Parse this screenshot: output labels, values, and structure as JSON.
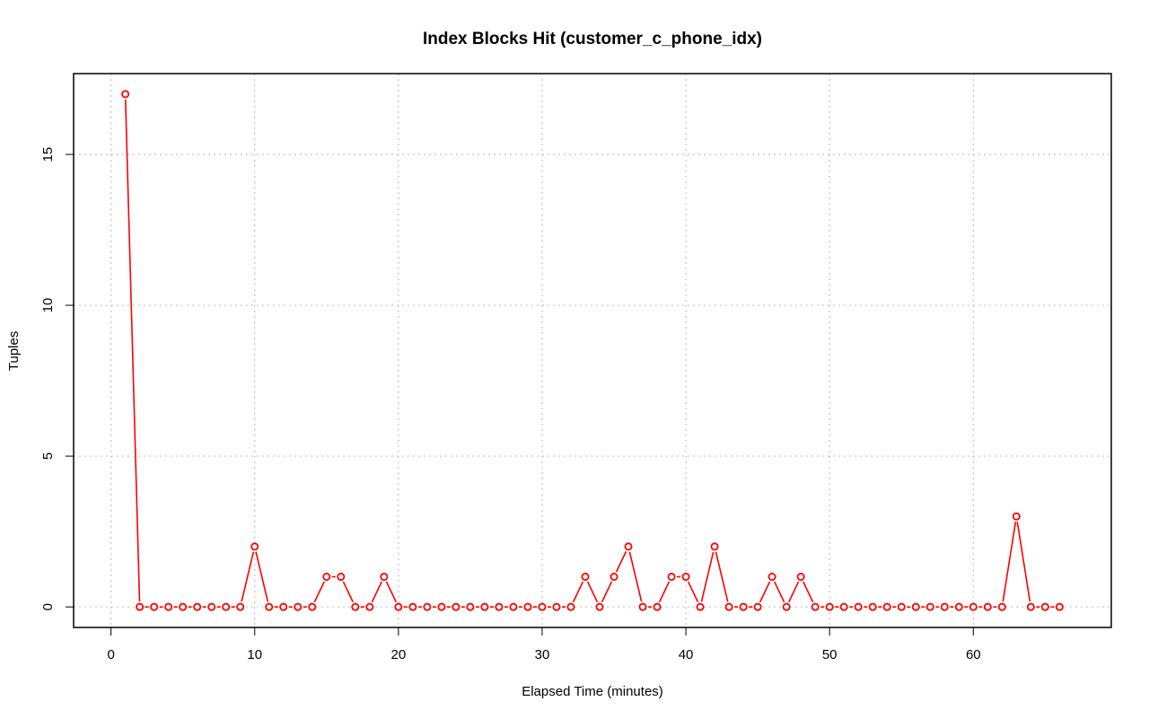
{
  "chart_data": {
    "type": "line",
    "title": "Index Blocks Hit (customer_c_phone_idx)",
    "xlabel": "Elapsed Time (minutes)",
    "ylabel": "Tuples",
    "xlim": [
      -2.6,
      69.6
    ],
    "ylim": [
      -0.68,
      17.68
    ],
    "x_ticks": [
      0,
      10,
      20,
      30,
      40,
      50,
      60
    ],
    "y_ticks": [
      0,
      5,
      10,
      15
    ],
    "grid": true,
    "series": [
      {
        "color": "#ff0000",
        "marker": "open-circle",
        "x": [
          1,
          2,
          3,
          4,
          5,
          6,
          7,
          8,
          9,
          10,
          11,
          12,
          13,
          14,
          15,
          16,
          17,
          18,
          19,
          20,
          21,
          22,
          23,
          24,
          25,
          26,
          27,
          28,
          29,
          30,
          31,
          32,
          33,
          34,
          35,
          36,
          37,
          38,
          39,
          40,
          41,
          42,
          43,
          44,
          45,
          46,
          47,
          48,
          49,
          50,
          51,
          52,
          53,
          54,
          55,
          56,
          57,
          58,
          59,
          60,
          61,
          62,
          63,
          64,
          65,
          66
        ],
        "y": [
          17,
          0,
          0,
          0,
          0,
          0,
          0,
          0,
          0,
          2,
          0,
          0,
          0,
          0,
          1,
          1,
          0,
          0,
          1,
          0,
          0,
          0,
          0,
          0,
          0,
          0,
          0,
          0,
          0,
          0,
          0,
          0,
          1,
          0,
          1,
          2,
          0,
          0,
          1,
          1,
          0,
          2,
          0,
          0,
          0,
          1,
          0,
          1,
          0,
          0,
          0,
          0,
          0,
          0,
          0,
          0,
          0,
          0,
          0,
          0,
          0,
          0,
          3,
          0,
          0,
          0
        ]
      }
    ]
  }
}
